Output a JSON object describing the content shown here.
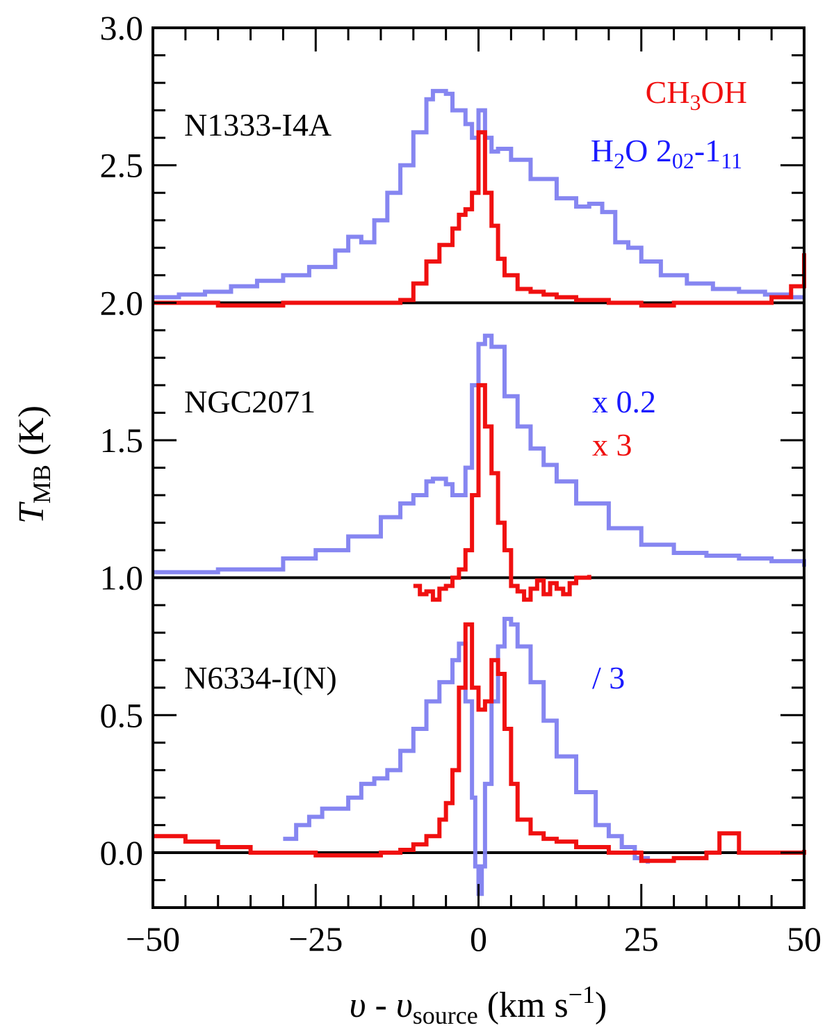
{
  "chart_data": {
    "type": "line",
    "xlim": [
      -50,
      50
    ],
    "ylim": [
      -0.2,
      3.0
    ],
    "xticks": [
      {
        "value": -50,
        "label": "−50"
      },
      {
        "value": -25,
        "label": "−25"
      },
      {
        "value": 0,
        "label": "0"
      },
      {
        "value": 25,
        "label": "25"
      },
      {
        "value": 50,
        "label": "50"
      }
    ],
    "yticks": [
      {
        "value": 0.0,
        "label": "0.0"
      },
      {
        "value": 0.5,
        "label": "0.5"
      },
      {
        "value": 1.0,
        "label": "1.0"
      },
      {
        "value": 1.5,
        "label": "1.5"
      },
      {
        "value": 2.0,
        "label": "2.0"
      },
      {
        "value": 2.5,
        "label": "2.5"
      },
      {
        "value": 3.0,
        "label": "3.0"
      }
    ],
    "xlabel": {
      "main": "υ - υ",
      "sub": "source",
      "unit": " (km s",
      "sup": "−1",
      "close": ")"
    },
    "ylabel": {
      "main": "T",
      "sub": "MB",
      "unit": " (K)"
    },
    "baselines": [
      0.0,
      1.0,
      2.0
    ],
    "colors": {
      "h2o": "#8080f0",
      "ch3oh": "#f01010",
      "label_h2o": "#1a1aff",
      "label_ch3oh": "#f01010"
    },
    "legend": {
      "ch3oh": {
        "a": "CH",
        "sub": "3",
        "b": "OH"
      },
      "h2o": {
        "a": "H",
        "sub1": "2",
        "b": "O 2",
        "sub2": "02",
        "c": "-1",
        "sub3": "11"
      }
    },
    "panels": [
      {
        "name": "N1333-I4A",
        "offset": 2.0,
        "scale_notes": [],
        "series": [
          {
            "name": "H2O 2_02-1_11",
            "x": [
              -50,
              -46,
              -42,
              -38,
              -34,
              -30,
              -26,
              -22,
              -20,
              -18,
              -16,
              -14,
              -12,
              -10,
              -8,
              -7,
              -5,
              -4,
              -2,
              -1,
              0,
              1,
              2,
              3,
              5,
              8,
              12,
              15,
              17,
              19,
              21,
              23,
              25,
              28,
              32,
              36,
              40,
              44,
              48,
              50
            ],
            "y": [
              0.02,
              0.03,
              0.04,
              0.06,
              0.08,
              0.1,
              0.13,
              0.19,
              0.24,
              0.22,
              0.3,
              0.4,
              0.5,
              0.62,
              0.74,
              0.77,
              0.76,
              0.7,
              0.65,
              0.6,
              0.7,
              0.6,
              0.55,
              0.56,
              0.52,
              0.45,
              0.38,
              0.35,
              0.36,
              0.33,
              0.22,
              0.2,
              0.15,
              0.1,
              0.07,
              0.05,
              0.04,
              0.03,
              0.02,
              0.02
            ]
          },
          {
            "name": "CH3OH",
            "x": [
              -50,
              -40,
              -30,
              -20,
              -15,
              -12,
              -10,
              -8,
              -6,
              -4,
              -3,
              -2,
              -1,
              0,
              1,
              2,
              3,
              4,
              6,
              8,
              10,
              12,
              15,
              20,
              25,
              30,
              35,
              40,
              45,
              48,
              50
            ],
            "y": [
              0.0,
              -0.01,
              0.0,
              0.0,
              0.0,
              0.01,
              0.07,
              0.15,
              0.21,
              0.27,
              0.32,
              0.34,
              0.4,
              0.62,
              0.4,
              0.28,
              0.16,
              0.1,
              0.05,
              0.04,
              0.03,
              0.02,
              0.01,
              0.0,
              -0.01,
              0.0,
              0.0,
              0.0,
              0.02,
              0.06,
              0.18
            ]
          }
        ]
      },
      {
        "name": "NGC2071",
        "offset": 1.0,
        "scale_notes": [
          {
            "text": "x 0.2",
            "series": "h2o"
          },
          {
            "text": "x 3",
            "series": "ch3oh"
          }
        ],
        "series": [
          {
            "name": "H2O 2_02-1_11",
            "x": [
              -50,
              -40,
              -30,
              -25,
              -20,
              -15,
              -12,
              -10,
              -8,
              -7,
              -5,
              -4,
              -2,
              -1,
              0,
              1,
              2,
              4,
              6,
              8,
              10,
              12,
              15,
              20,
              25,
              30,
              35,
              40,
              45,
              50
            ],
            "y": [
              0.02,
              0.03,
              0.07,
              0.1,
              0.15,
              0.22,
              0.27,
              0.3,
              0.35,
              0.36,
              0.34,
              0.3,
              0.4,
              0.7,
              0.85,
              0.88,
              0.84,
              0.66,
              0.55,
              0.47,
              0.41,
              0.35,
              0.27,
              0.18,
              0.12,
              0.09,
              0.08,
              0.07,
              0.06,
              0.04
            ]
          },
          {
            "name": "CH3OH",
            "x": [
              -10,
              -9,
              -8,
              -7,
              -6,
              -5,
              -4,
              -3,
              -2,
              -1,
              0,
              1,
              2,
              3,
              4,
              5,
              6,
              7,
              8,
              9,
              10,
              11,
              12,
              13,
              14,
              15,
              17
            ],
            "y": [
              -0.03,
              -0.06,
              -0.05,
              -0.08,
              -0.04,
              -0.03,
              0.0,
              0.03,
              0.1,
              0.3,
              0.7,
              0.55,
              0.38,
              0.2,
              0.1,
              -0.03,
              -0.05,
              -0.08,
              -0.04,
              -0.01,
              -0.06,
              -0.02,
              -0.04,
              -0.06,
              -0.02,
              0.0,
              0.01
            ]
          }
        ]
      },
      {
        "name": "N6334-I(N)",
        "offset": 0.0,
        "scale_notes": [
          {
            "text": "/ 3",
            "series": "h2o"
          }
        ],
        "series": [
          {
            "name": "H2O 2_02-1_11",
            "x": [
              -30,
              -28,
              -26,
              -24,
              -22,
              -20,
              -18,
              -16,
              -14,
              -12,
              -10,
              -8,
              -6,
              -4,
              -3,
              -2,
              -1,
              -0.5,
              0,
              0.5,
              1,
              2,
              3,
              4,
              5,
              6,
              8,
              10,
              12,
              15,
              18,
              20,
              22,
              24,
              26
            ],
            "y": [
              0.05,
              0.1,
              0.13,
              0.16,
              0.16,
              0.2,
              0.25,
              0.27,
              0.3,
              0.37,
              0.45,
              0.55,
              0.62,
              0.7,
              0.76,
              0.55,
              0.2,
              -0.05,
              -0.15,
              -0.05,
              0.25,
              0.55,
              0.75,
              0.85,
              0.83,
              0.75,
              0.62,
              0.48,
              0.35,
              0.22,
              0.1,
              0.06,
              0.02,
              -0.02,
              -0.04
            ]
          },
          {
            "name": "CH3OH",
            "x": [
              -50,
              -45,
              -40,
              -35,
              -30,
              -25,
              -20,
              -15,
              -12,
              -10,
              -8,
              -6,
              -5,
              -4,
              -3,
              -2,
              -1,
              0,
              1,
              2,
              3,
              4,
              5,
              6,
              8,
              10,
              12,
              15,
              20,
              25,
              30,
              35,
              37,
              40,
              45,
              50
            ],
            "y": [
              0.06,
              0.04,
              0.02,
              0.0,
              0.0,
              -0.01,
              -0.01,
              0.0,
              0.01,
              0.03,
              0.06,
              0.12,
              0.18,
              0.3,
              0.6,
              0.83,
              0.6,
              0.52,
              0.55,
              0.7,
              0.65,
              0.45,
              0.25,
              0.12,
              0.07,
              0.05,
              0.04,
              0.02,
              0.0,
              -0.03,
              -0.02,
              0.0,
              0.07,
              0.0,
              0.0,
              0.01
            ]
          }
        ]
      }
    ]
  }
}
